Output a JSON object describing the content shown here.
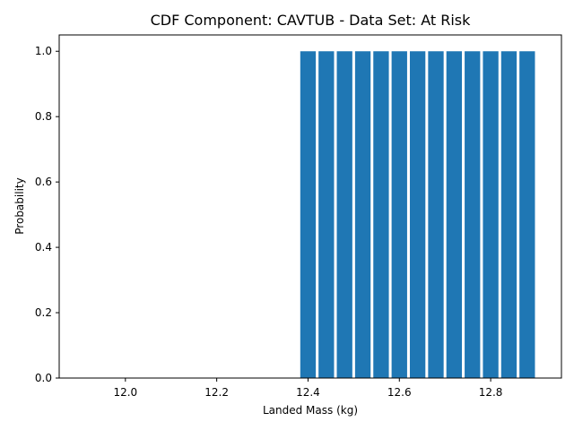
{
  "chart_data": {
    "type": "bar",
    "title": "CDF Component: CAVTUB - Data Set: At Risk",
    "xlabel": "Landed Mass (kg)",
    "ylabel": "Probability",
    "x": [
      12.4,
      12.44,
      12.48,
      12.52,
      12.56,
      12.6,
      12.64,
      12.68,
      12.72,
      12.76,
      12.8,
      12.84,
      12.88
    ],
    "values": [
      1.0,
      1.0,
      1.0,
      1.0,
      1.0,
      1.0,
      1.0,
      1.0,
      1.0,
      1.0,
      1.0,
      1.0,
      1.0
    ],
    "bar_width": 0.034,
    "xlim": [
      11.855,
      12.955
    ],
    "ylim": [
      0,
      1.05
    ],
    "xticks": [
      "12.0",
      "12.2",
      "12.4",
      "12.6",
      "12.8"
    ],
    "yticks": [
      "0.0",
      "0.2",
      "0.4",
      "0.6",
      "0.8",
      "1.0"
    ],
    "bar_color": "#1f77b4",
    "grid": false,
    "legend": "none"
  }
}
